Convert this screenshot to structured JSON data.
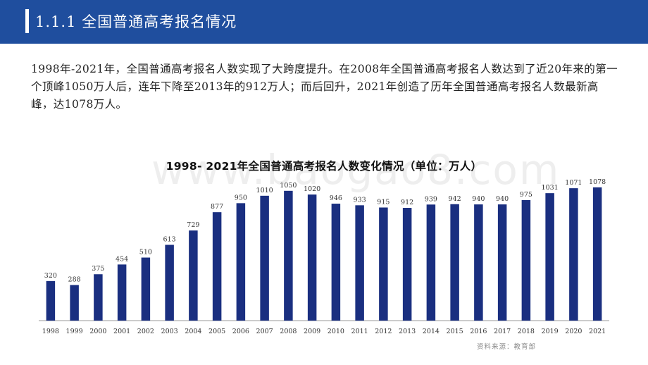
{
  "header": {
    "title": "1.1.1 全国普通高考报名情况"
  },
  "intro_text": "1998年-2021年，全国普通高考报名人数实现了大跨度提升。在2008年全国普通高考报名人数达到了近20年来的第一个顶峰1050万人后，连年下降至2013年的912万人；而后回升，2021年创造了历年全国普通高考报名人数最新高峰，达1078万人。",
  "watermark": "www.baogao8.com",
  "source_note": "资料来源：教育部",
  "colors": {
    "header_bg": "#1f4e9e",
    "bar": "#1a2f80",
    "axis": "#9a9a9a"
  },
  "chart_data": {
    "type": "bar",
    "title": "1998- 2021年全国普通高考报名人数变化情况（单位：万人）",
    "xlabel": "",
    "ylabel": "",
    "categories": [
      "1998",
      "1999",
      "2000",
      "2001",
      "2002",
      "2003",
      "2004",
      "2005",
      "2006",
      "2007",
      "2008",
      "2009",
      "2010",
      "2011",
      "2012",
      "2013",
      "2014",
      "2015",
      "2016",
      "2017",
      "2018",
      "2019",
      "2020",
      "2021"
    ],
    "values": [
      320,
      288,
      375,
      454,
      510,
      613,
      729,
      877,
      950,
      1010,
      1050,
      1020,
      946,
      933,
      915,
      912,
      939,
      942,
      940,
      940,
      975,
      1031,
      1071,
      1078
    ],
    "ylim": [
      0,
      1180
    ],
    "grid": false,
    "legend": "none",
    "data_labels": true
  }
}
